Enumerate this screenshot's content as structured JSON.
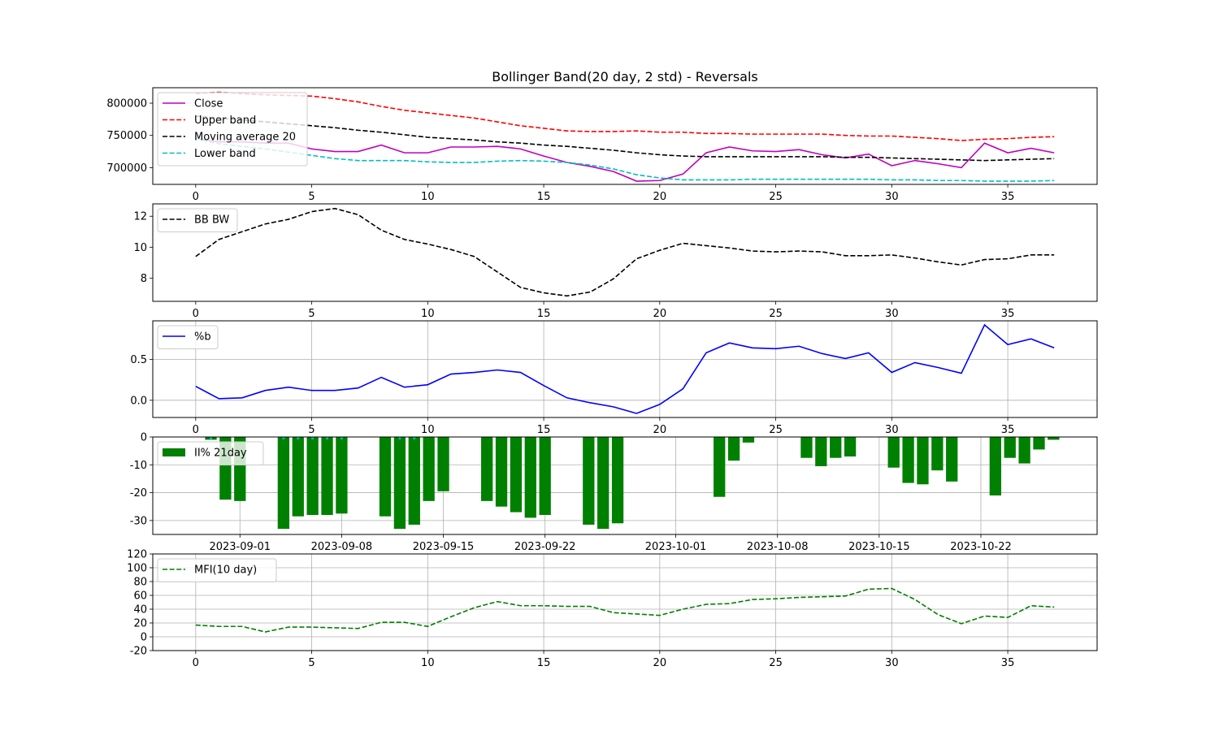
{
  "figure": {
    "title": "Bollinger Band(20 day, 2 std) - Reversals"
  },
  "chart_data": [
    {
      "type": "line",
      "id": "bollinger",
      "x": [
        0,
        1,
        2,
        3,
        4,
        5,
        6,
        7,
        8,
        9,
        10,
        11,
        12,
        13,
        14,
        15,
        16,
        17,
        18,
        19,
        20,
        21,
        22,
        23,
        24,
        25,
        26,
        27,
        28,
        29,
        30,
        31,
        32,
        33,
        34,
        35,
        36,
        37
      ],
      "series": [
        {
          "name": "Close",
          "color": "#bf00bf",
          "style": "solid",
          "values": [
            745000,
            740000,
            740000,
            738000,
            738000,
            729000,
            725000,
            725000,
            735000,
            723000,
            723000,
            732000,
            732000,
            733000,
            729000,
            718000,
            708000,
            702000,
            694000,
            679000,
            680000,
            690000,
            723000,
            732000,
            726000,
            725000,
            728000,
            720000,
            715000,
            721000,
            703000,
            711000,
            706000,
            700000,
            738000,
            723000,
            730000,
            723000
          ]
        },
        {
          "name": "Upper band",
          "color": "#ff0000",
          "style": "dashed",
          "values": [
            815000,
            817000,
            815000,
            813000,
            812000,
            811000,
            807000,
            802000,
            795000,
            789000,
            785000,
            781000,
            777000,
            771000,
            765000,
            761000,
            757000,
            756000,
            756000,
            757000,
            755000,
            755000,
            753000,
            753000,
            752000,
            752000,
            752000,
            752000,
            750000,
            749000,
            749000,
            747000,
            745000,
            742000,
            744000,
            745000,
            747000,
            748000
          ]
        },
        {
          "name": "Moving average 20",
          "color": "#000000",
          "style": "dashed",
          "values": [
            780000,
            777000,
            774000,
            771000,
            768000,
            765000,
            762000,
            758000,
            755000,
            751000,
            747000,
            745000,
            743000,
            740000,
            738000,
            735000,
            733000,
            730000,
            727000,
            723000,
            720000,
            718000,
            717000,
            717000,
            717000,
            717000,
            717000,
            717000,
            716000,
            716000,
            715000,
            714000,
            713000,
            712000,
            711000,
            712000,
            713000,
            714000
          ]
        },
        {
          "name": "Lower band",
          "color": "#00bfbf",
          "style": "dashed",
          "values": [
            745000,
            737000,
            733000,
            729000,
            724000,
            719000,
            714000,
            711000,
            711000,
            711000,
            709000,
            708000,
            708000,
            710000,
            711000,
            710000,
            708000,
            704000,
            698000,
            689000,
            684000,
            681000,
            681000,
            681000,
            682000,
            682000,
            682000,
            682000,
            682000,
            682000,
            681000,
            681000,
            680000,
            680000,
            679000,
            679000,
            679000,
            680000
          ]
        }
      ],
      "xlim": [
        -1.85,
        38.85
      ],
      "ylim": [
        674000,
        824000
      ],
      "xticks": [
        0,
        5,
        10,
        15,
        20,
        25,
        30,
        35
      ],
      "yticks": [
        700000,
        750000,
        800000
      ],
      "legend": "top-left",
      "grid": false
    },
    {
      "type": "line",
      "id": "bbw",
      "x": [
        0,
        1,
        2,
        3,
        4,
        5,
        6,
        7,
        8,
        9,
        10,
        11,
        12,
        13,
        14,
        15,
        16,
        17,
        18,
        19,
        20,
        21,
        22,
        23,
        24,
        25,
        26,
        27,
        28,
        29,
        30,
        31,
        32,
        33,
        34,
        35,
        36,
        37
      ],
      "series": [
        {
          "name": "BB BW",
          "color": "#000000",
          "style": "dashed",
          "values": [
            9.4,
            10.5,
            11.0,
            11.5,
            11.8,
            12.3,
            12.5,
            12.1,
            11.1,
            10.5,
            10.2,
            9.85,
            9.4,
            8.4,
            7.4,
            7.05,
            6.85,
            7.1,
            7.95,
            9.25,
            9.8,
            10.25,
            10.1,
            9.95,
            9.75,
            9.7,
            9.75,
            9.7,
            9.45,
            9.45,
            9.5,
            9.3,
            9.05,
            8.85,
            9.2,
            9.25,
            9.5,
            9.5
          ]
        }
      ],
      "xlim": [
        -1.85,
        38.85
      ],
      "ylim": [
        6.5,
        12.8
      ],
      "xticks": [
        0,
        5,
        10,
        15,
        20,
        25,
        30,
        35
      ],
      "yticks": [
        8,
        10,
        12
      ],
      "legend": "top-left",
      "grid": false
    },
    {
      "type": "line",
      "id": "percent-b",
      "x": [
        0,
        1,
        2,
        3,
        4,
        5,
        6,
        7,
        8,
        9,
        10,
        11,
        12,
        13,
        14,
        15,
        16,
        17,
        18,
        19,
        20,
        21,
        22,
        23,
        24,
        25,
        26,
        27,
        28,
        29,
        30,
        31,
        32,
        33,
        34,
        35,
        36,
        37
      ],
      "series": [
        {
          "name": "%b",
          "color": "#0000ff",
          "style": "solid",
          "values": [
            0.17,
            0.02,
            0.03,
            0.12,
            0.16,
            0.12,
            0.12,
            0.15,
            0.28,
            0.16,
            0.19,
            0.32,
            0.34,
            0.37,
            0.34,
            0.18,
            0.03,
            -0.03,
            -0.08,
            -0.16,
            -0.05,
            0.14,
            0.58,
            0.7,
            0.64,
            0.63,
            0.66,
            0.57,
            0.51,
            0.58,
            0.34,
            0.46,
            0.4,
            0.33,
            0.92,
            0.68,
            0.75,
            0.64
          ]
        }
      ],
      "xlim": [
        -1.85,
        38.85
      ],
      "ylim": [
        -0.21,
        0.97
      ],
      "xticks": [
        0,
        5,
        10,
        15,
        20,
        25,
        30,
        35
      ],
      "yticks": [
        0.0,
        0.5
      ],
      "ytick_labels": [
        "0.0",
        "0.5"
      ],
      "legend": "top-left",
      "grid": true
    },
    {
      "type": "bar",
      "id": "ii-percent",
      "series": [
        {
          "name": "II% 21day",
          "color": "#008000",
          "points": [
            {
              "date": "2023-08-30",
              "value": -1.0
            },
            {
              "date": "2023-08-31",
              "value": -22.5
            },
            {
              "date": "2023-09-01",
              "value": -23.0
            },
            {
              "date": "2023-09-04",
              "value": -33.0
            },
            {
              "date": "2023-09-05",
              "value": -28.5
            },
            {
              "date": "2023-09-06",
              "value": -28.0
            },
            {
              "date": "2023-09-07",
              "value": -28.0
            },
            {
              "date": "2023-09-08",
              "value": -27.5
            },
            {
              "date": "2023-09-11",
              "value": -28.5
            },
            {
              "date": "2023-09-12",
              "value": -33.0
            },
            {
              "date": "2023-09-13",
              "value": -31.5
            },
            {
              "date": "2023-09-14",
              "value": -23.0
            },
            {
              "date": "2023-09-15",
              "value": -19.5
            },
            {
              "date": "2023-09-18",
              "value": -23.0
            },
            {
              "date": "2023-09-19",
              "value": -25.0
            },
            {
              "date": "2023-09-20",
              "value": -27.0
            },
            {
              "date": "2023-09-21",
              "value": -29.0
            },
            {
              "date": "2023-09-22",
              "value": -28.0
            },
            {
              "date": "2023-09-25",
              "value": -31.5
            },
            {
              "date": "2023-09-26",
              "value": -33.0
            },
            {
              "date": "2023-09-27",
              "value": -31.0
            },
            {
              "date": "2023-10-04",
              "value": -21.5
            },
            {
              "date": "2023-10-05",
              "value": -8.5
            },
            {
              "date": "2023-10-06",
              "value": -2.0
            },
            {
              "date": "2023-10-10",
              "value": -7.5
            },
            {
              "date": "2023-10-11",
              "value": -10.5
            },
            {
              "date": "2023-10-12",
              "value": -7.5
            },
            {
              "date": "2023-10-13",
              "value": -7.0
            },
            {
              "date": "2023-10-16",
              "value": -11.0
            },
            {
              "date": "2023-10-17",
              "value": -16.5
            },
            {
              "date": "2023-10-18",
              "value": -17.0
            },
            {
              "date": "2023-10-19",
              "value": -12.0
            },
            {
              "date": "2023-10-20",
              "value": -16.0
            },
            {
              "date": "2023-10-23",
              "value": -21.0
            },
            {
              "date": "2023-10-24",
              "value": -7.5
            },
            {
              "date": "2023-10-25",
              "value": -9.5
            },
            {
              "date": "2023-10-26",
              "value": -4.5
            },
            {
              "date": "2023-10-27",
              "value": -1.0
            }
          ]
        }
      ],
      "baseline_markers": {
        "color": "#00bfbf",
        "dates": [
          "2023-08-30",
          "2023-09-04",
          "2023-09-05",
          "2023-09-06",
          "2023-09-07",
          "2023-09-08",
          "2023-09-12",
          "2023-09-13"
        ]
      },
      "xlim_dates": [
        "2023-08-26",
        "2023-10-30"
      ],
      "ylim": [
        -35,
        0
      ],
      "xticks": [
        "2023-09-01",
        "2023-09-08",
        "2023-09-15",
        "2023-09-22",
        "2023-10-01",
        "2023-10-08",
        "2023-10-15",
        "2023-10-22"
      ],
      "yticks": [
        0,
        -10,
        -20,
        -30
      ],
      "legend": "top-left",
      "grid": true
    },
    {
      "type": "line",
      "id": "mfi",
      "x": [
        0,
        1,
        2,
        3,
        4,
        5,
        6,
        7,
        8,
        9,
        10,
        11,
        12,
        13,
        14,
        15,
        16,
        17,
        18,
        19,
        20,
        21,
        22,
        23,
        24,
        25,
        26,
        27,
        28,
        29,
        30,
        31,
        32,
        33,
        34,
        35,
        36,
        37
      ],
      "series": [
        {
          "name": "MFI(10 day)",
          "color": "#008000",
          "style": "dashed",
          "values": [
            17,
            15,
            15,
            7,
            14,
            14,
            13,
            12,
            21,
            21,
            15,
            29,
            42,
            51,
            45,
            45,
            44,
            44,
            35,
            33,
            31,
            40,
            47,
            48,
            54,
            55,
            57,
            58,
            59,
            69,
            70,
            54,
            32,
            19,
            30,
            28,
            45,
            43
          ]
        }
      ],
      "xlim": [
        -1.85,
        38.85
      ],
      "ylim": [
        -20,
        120
      ],
      "xticks": [
        0,
        5,
        10,
        15,
        20,
        25,
        30,
        35
      ],
      "yticks": [
        -20,
        0,
        20,
        40,
        60,
        80,
        100,
        120
      ],
      "legend": "top-left",
      "grid": true
    }
  ]
}
